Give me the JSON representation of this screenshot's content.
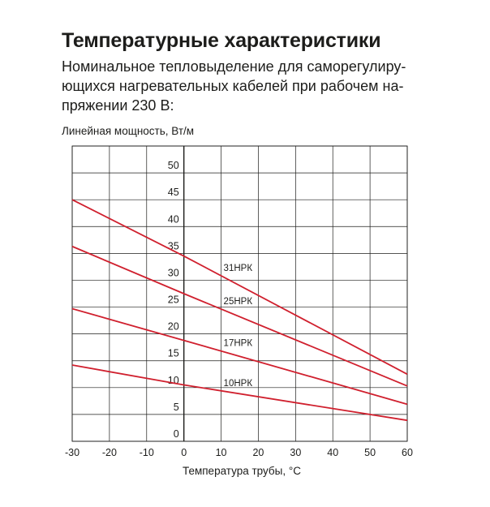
{
  "title": "Температурные характеристики",
  "subtitle_lines": [
    "Номинальное тепловыделение для саморегулиру-",
    "ющихся нагревательных кабелей при рабочем на-",
    "пряжении 230 В:"
  ],
  "colors": {
    "series": "#d0202e",
    "grid": "#1d1d1b",
    "text": "#1d1d1b"
  },
  "chart_data": {
    "type": "line",
    "title": "",
    "ylabel": "Линейная мощность, Вт/м",
    "xlabel": "Температура трубы, °С",
    "xlim": [
      -30,
      60
    ],
    "ylim": [
      0,
      55
    ],
    "x_ticks": [
      -30,
      -20,
      -10,
      0,
      10,
      20,
      30,
      40,
      50,
      60
    ],
    "y_ticks": [
      0,
      5,
      10,
      15,
      20,
      25,
      30,
      35,
      40,
      45,
      50
    ],
    "grid": true,
    "series": [
      {
        "name": "31НРК",
        "x": [
          -30,
          0,
          60
        ],
        "y": [
          45,
          34.5,
          12.5
        ]
      },
      {
        "name": "25НРК",
        "x": [
          -30,
          0,
          60
        ],
        "y": [
          36.3,
          27.5,
          10.3
        ]
      },
      {
        "name": "17НРК",
        "x": [
          -30,
          0,
          60
        ],
        "y": [
          24.7,
          18.8,
          6.9
        ]
      },
      {
        "name": "10НРК",
        "x": [
          -30,
          0,
          60
        ],
        "y": [
          14.2,
          10.5,
          3.9
        ]
      }
    ]
  }
}
